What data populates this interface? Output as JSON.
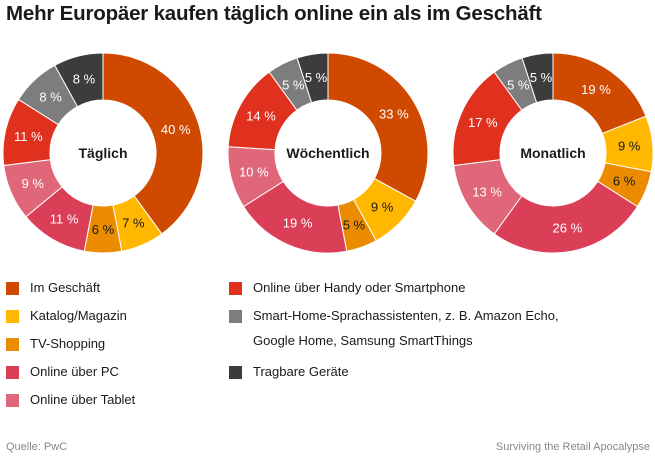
{
  "title": "Mehr Europäer kaufen täglich online ein als im Geschäft",
  "source": "Quelle: PwC",
  "credit": "Surviving the Retail Apocalypse",
  "chart_data": {
    "type": "pie",
    "variant": "donut",
    "categories": [
      "Im Geschäft",
      "Katalog/Magazin",
      "TV-Shopping",
      "Online über PC",
      "Online über Tablet",
      "Online über Handy oder Smartphone",
      "Smart-Home-Sprachassistenten, z. B. Amazon Echo, Google Home, Samsung SmartThings",
      "Tragbare Geräte"
    ],
    "colors": [
      "#cf4a00",
      "#ffb700",
      "#eb8c00",
      "#db3e57",
      "#e0667a",
      "#e0301e",
      "#7d7d7d",
      "#3c3c3c"
    ],
    "unit": "%",
    "charts": [
      {
        "name": "Täglich",
        "values": [
          40,
          7,
          6,
          11,
          9,
          11,
          8,
          8
        ]
      },
      {
        "name": "Wöchentlich",
        "values": [
          33,
          9,
          5,
          19,
          10,
          14,
          5,
          5
        ]
      },
      {
        "name": "Monatlich",
        "values": [
          19,
          9,
          6,
          26,
          13,
          17,
          5,
          5
        ]
      }
    ],
    "label_colors": [
      "#ffffff",
      "#1a1a1a",
      "#1a1a1a",
      "#ffffff",
      "#ffffff",
      "#ffffff",
      "#ffffff",
      "#ffffff"
    ]
  },
  "legend": {
    "items": [
      {
        "label": "Im Geschäft"
      },
      {
        "label": "Katalog/Magazin"
      },
      {
        "label": "TV-Shopping"
      },
      {
        "label": "Online über PC"
      },
      {
        "label": "Online über Tablet"
      },
      {
        "label": "Online über Handy oder Smartphone"
      },
      {
        "label": "Smart-Home-Sprachassistenten, z. B. Amazon Echo,",
        "label_line2": "Google Home, Samsung SmartThings"
      },
      {
        "label": "Tragbare Geräte"
      }
    ]
  }
}
